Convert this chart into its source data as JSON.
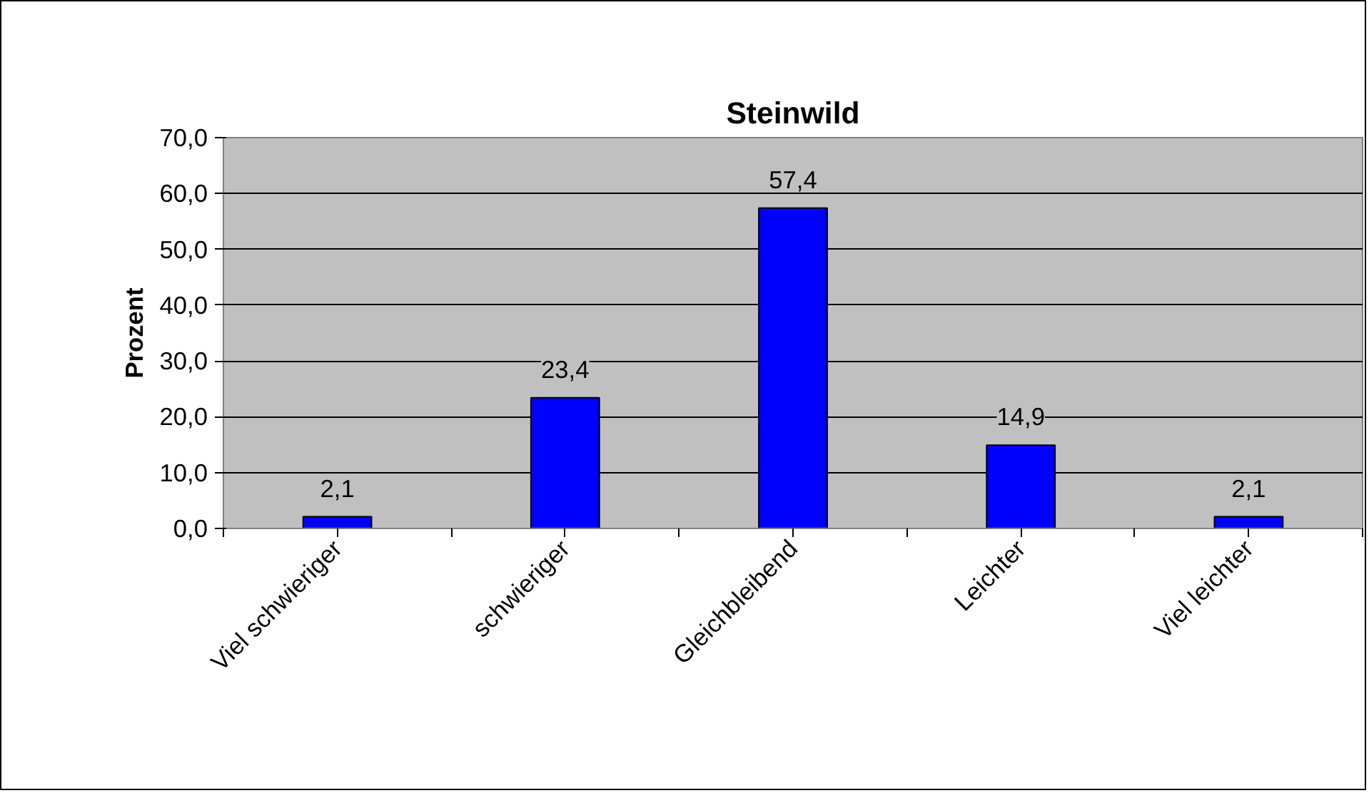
{
  "chart_data": {
    "type": "bar",
    "title": "Steinwild",
    "ylabel": "Prozent",
    "categories": [
      "Viel schwieriger",
      "schwieriger",
      "Gleichbleibend",
      "Leichter",
      "Viel leichter"
    ],
    "values": [
      2.1,
      23.4,
      57.4,
      14.9,
      2.1
    ],
    "value_labels": [
      "2,1",
      "23,4",
      "57,4",
      "14,9",
      "2,1"
    ],
    "color": "#0000ff",
    "ylim": [
      0,
      70
    ],
    "yticks": [
      {
        "value": 0,
        "label": "0,0"
      },
      {
        "value": 10,
        "label": "10,0"
      },
      {
        "value": 20,
        "label": "20,0"
      },
      {
        "value": 30,
        "label": "30,0"
      },
      {
        "value": 40,
        "label": "40,0"
      },
      {
        "value": 50,
        "label": "50,0"
      },
      {
        "value": 60,
        "label": "60,0"
      },
      {
        "value": 70,
        "label": "70,0"
      }
    ],
    "grid": "y"
  }
}
